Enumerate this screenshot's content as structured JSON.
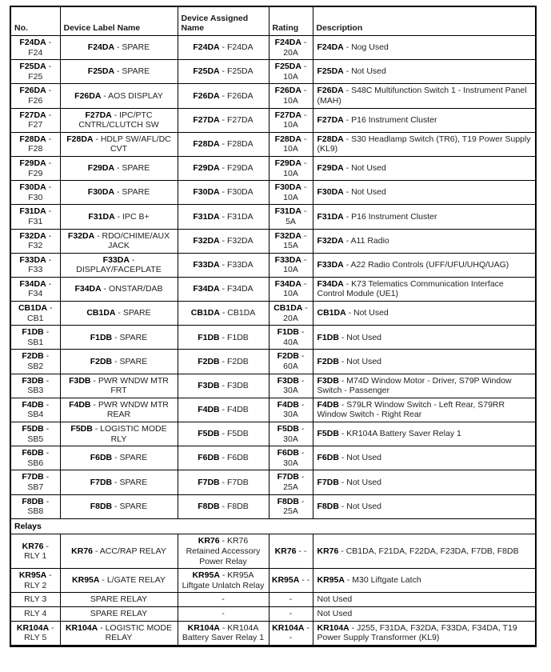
{
  "table": {
    "headers": [
      {
        "label": "No."
      },
      {
        "label": "Device Label Name"
      },
      {
        "label": "Device Assigned Name"
      },
      {
        "label": "Rating"
      },
      {
        "label": "Description"
      }
    ],
    "relays_section_label": "Relays",
    "fuse_rows": [
      {
        "no": {
          "code": "F24DA",
          "text": " - F24"
        },
        "label": {
          "code": "F24DA",
          "text": " - SPARE"
        },
        "assigned": {
          "code": "F24DA",
          "text": " - F24DA"
        },
        "rating": {
          "code": "F24DA",
          "text": " - 20A"
        },
        "description": {
          "code": "F24DA",
          "text": " - Nog Used"
        }
      },
      {
        "no": {
          "code": "F25DA",
          "text": " - F25"
        },
        "label": {
          "code": "F25DA",
          "text": " - SPARE"
        },
        "assigned": {
          "code": "F25DA",
          "text": " - F25DA"
        },
        "rating": {
          "code": "F25DA",
          "text": " - 10A"
        },
        "description": {
          "code": "F25DA",
          "text": " - Not Used"
        }
      },
      {
        "no": {
          "code": "F26DA",
          "text": " - F26"
        },
        "label": {
          "code": "F26DA",
          "text": " - AOS DISPLAY"
        },
        "assigned": {
          "code": "F26DA",
          "text": " - F26DA"
        },
        "rating": {
          "code": "F26DA",
          "text": " - 10A"
        },
        "description": {
          "code": "F26DA",
          "text": " - S48C Multifunction Switch 1 - Instrument Panel (MAH)"
        }
      },
      {
        "no": {
          "code": "F27DA",
          "text": " - F27"
        },
        "label": {
          "code": "F27DA",
          "text": " - IPC/PTC CNTRL/CLUTCH SW"
        },
        "assigned": {
          "code": "F27DA",
          "text": " - F27DA"
        },
        "rating": {
          "code": "F27DA",
          "text": " - 10A"
        },
        "description": {
          "code": "F27DA",
          "text": " - P16 Instrument Cluster"
        }
      },
      {
        "no": {
          "code": "F28DA",
          "text": " - F28"
        },
        "label": {
          "code": "F28DA",
          "text": " - HDLP SW/AFL/DC CVT"
        },
        "assigned": {
          "code": "F28DA",
          "text": " - F28DA"
        },
        "rating": {
          "code": "F28DA",
          "text": " - 10A"
        },
        "description": {
          "code": "F28DA",
          "text": " - S30 Headlamp Switch (TR6), T19 Power Supply (KL9)"
        }
      },
      {
        "no": {
          "code": "F29DA",
          "text": " - F29"
        },
        "label": {
          "code": "F29DA",
          "text": " - SPARE"
        },
        "assigned": {
          "code": "F29DA",
          "text": " - F29DA"
        },
        "rating": {
          "code": "F29DA",
          "text": " - 10A"
        },
        "description": {
          "code": "F29DA",
          "text": " - Not Used"
        }
      },
      {
        "no": {
          "code": "F30DA",
          "text": " - F30"
        },
        "label": {
          "code": "F30DA",
          "text": " - SPARE"
        },
        "assigned": {
          "code": "F30DA",
          "text": " - F30DA"
        },
        "rating": {
          "code": "F30DA",
          "text": " - 10A"
        },
        "description": {
          "code": "F30DA",
          "text": " - Not Used"
        }
      },
      {
        "no": {
          "code": "F31DA",
          "text": " - F31"
        },
        "label": {
          "code": "F31DA",
          "text": " - IPC B+"
        },
        "assigned": {
          "code": "F31DA",
          "text": " - F31DA"
        },
        "rating": {
          "code": "F31DA",
          "text": " - 5A"
        },
        "description": {
          "code": "F31DA",
          "text": " - P16 Instrument Cluster"
        }
      },
      {
        "no": {
          "code": "F32DA",
          "text": " - F32"
        },
        "label": {
          "code": "F32DA",
          "text": " - RDO/CHIME/AUX JACK"
        },
        "assigned": {
          "code": "F32DA",
          "text": " - F32DA"
        },
        "rating": {
          "code": "F32DA",
          "text": " - 15A"
        },
        "description": {
          "code": "F32DA",
          "text": " - A11 Radio"
        }
      },
      {
        "no": {
          "code": "F33DA",
          "text": " - F33"
        },
        "label": {
          "code": "F33DA",
          "text": " - DISPLAY/FACEPLATE"
        },
        "assigned": {
          "code": "F33DA",
          "text": " - F33DA"
        },
        "rating": {
          "code": "F33DA",
          "text": " - 10A"
        },
        "description": {
          "code": "F33DA",
          "text": " - A22 Radio Controls (UFF/UFU/UHQ/UAG)"
        }
      },
      {
        "no": {
          "code": "F34DA",
          "text": " - F34"
        },
        "label": {
          "code": "F34DA",
          "text": " - ONSTAR/DAB"
        },
        "assigned": {
          "code": "F34DA",
          "text": " - F34DA"
        },
        "rating": {
          "code": "F34DA",
          "text": " - 10A"
        },
        "description": {
          "code": "F34DA",
          "text": " - K73 Telematics Communication Interface Control Module (UE1)"
        }
      },
      {
        "no": {
          "code": "CB1DA",
          "text": " - CB1"
        },
        "label": {
          "code": "CB1DA",
          "text": " - SPARE"
        },
        "assigned": {
          "code": "CB1DA",
          "text": " - CB1DA"
        },
        "rating": {
          "code": "CB1DA",
          "text": " - 20A"
        },
        "description": {
          "code": "CB1DA",
          "text": " - Not Used"
        }
      },
      {
        "no": {
          "code": "F1DB",
          "text": " - SB1"
        },
        "label": {
          "code": "F1DB",
          "text": " - SPARE"
        },
        "assigned": {
          "code": "F1DB",
          "text": " - F1DB"
        },
        "rating": {
          "code": "F1DB",
          "text": " - 40A"
        },
        "description": {
          "code": "F1DB",
          "text": " - Not Used"
        }
      },
      {
        "no": {
          "code": "F2DB",
          "text": " - SB2"
        },
        "label": {
          "code": "F2DB",
          "text": " - SPARE"
        },
        "assigned": {
          "code": "F2DB",
          "text": " - F2DB"
        },
        "rating": {
          "code": "F2DB",
          "text": " - 60A"
        },
        "description": {
          "code": "F2DB",
          "text": " - Not Used"
        }
      },
      {
        "no": {
          "code": "F3DB",
          "text": " - SB3"
        },
        "label": {
          "code": "F3DB",
          "text": " - PWR WNDW MTR FRT"
        },
        "assigned": {
          "code": "F3DB",
          "text": " - F3DB"
        },
        "rating": {
          "code": "F3DB",
          "text": " - 30A"
        },
        "description": {
          "code": "F3DB",
          "text": " - M74D Window Motor - Driver, S79P Window Switch - Passenger"
        }
      },
      {
        "no": {
          "code": "F4DB",
          "text": " - SB4"
        },
        "label": {
          "code": "F4DB",
          "text": " - PWR WNDW MTR REAR"
        },
        "assigned": {
          "code": "F4DB",
          "text": " - F4DB"
        },
        "rating": {
          "code": "F4DB",
          "text": " - 30A"
        },
        "description": {
          "code": "F4DB",
          "text": " - S79LR Window Switch - Left Rear, S79RR Window Switch - Right Rear"
        }
      },
      {
        "no": {
          "code": "F5DB",
          "text": " - SB5"
        },
        "label": {
          "code": "F5DB",
          "text": " - LOGISTIC MODE RLY"
        },
        "assigned": {
          "code": "F5DB",
          "text": " - F5DB"
        },
        "rating": {
          "code": "F5DB",
          "text": " - 30A"
        },
        "description": {
          "code": "F5DB",
          "text": " - KR104A Battery Saver Relay 1"
        }
      },
      {
        "no": {
          "code": "F6DB",
          "text": " - SB6"
        },
        "label": {
          "code": "F6DB",
          "text": " - SPARE"
        },
        "assigned": {
          "code": "F6DB",
          "text": " - F6DB"
        },
        "rating": {
          "code": "F6DB",
          "text": " - 30A"
        },
        "description": {
          "code": "F6DB",
          "text": " - Not Used"
        }
      },
      {
        "no": {
          "code": "F7DB",
          "text": " - SB7"
        },
        "label": {
          "code": "F7DB",
          "text": " - SPARE"
        },
        "assigned": {
          "code": "F7DB",
          "text": " - F7DB"
        },
        "rating": {
          "code": "F7DB",
          "text": " - 25A"
        },
        "description": {
          "code": "F7DB",
          "text": " - Not Used"
        }
      },
      {
        "no": {
          "code": "F8DB",
          "text": " - SB8"
        },
        "label": {
          "code": "F8DB",
          "text": " - SPARE"
        },
        "assigned": {
          "code": "F8DB",
          "text": " - F8DB"
        },
        "rating": {
          "code": "F8DB",
          "text": " - 25A"
        },
        "description": {
          "code": "F8DB",
          "text": " - Not Used"
        }
      }
    ],
    "relay_rows": [
      {
        "no": {
          "code": "KR76",
          "text": " - RLY 1"
        },
        "label": {
          "code": "KR76",
          "text": " - ACC/RAP RELAY"
        },
        "assigned": {
          "code": "KR76",
          "text": " - KR76 Retained Accessory Power Relay"
        },
        "rating": {
          "code": "KR76",
          "text": " - -"
        },
        "description": {
          "code": "KR76",
          "text": " - CB1DA, F21DA, F22DA, F23DA, F7DB, F8DB"
        }
      },
      {
        "no": {
          "code": "KR95A",
          "text": " - RLY 2"
        },
        "label": {
          "code": "KR95A",
          "text": " - L/GATE RELAY"
        },
        "assigned": {
          "code": "KR95A",
          "text": " - KR95A Liftgate Unlatch Relay"
        },
        "rating": {
          "code": "KR95A",
          "text": " - -"
        },
        "description": {
          "code": "KR95A",
          "text": " - M30 Liftgate Latch"
        }
      },
      {
        "no": {
          "code": "",
          "text": "RLY 3"
        },
        "label": {
          "code": "",
          "text": "SPARE RELAY"
        },
        "assigned": {
          "code": "",
          "text": "-"
        },
        "rating": {
          "code": "",
          "text": "-"
        },
        "description": {
          "code": "",
          "text": "Not Used"
        }
      },
      {
        "no": {
          "code": "",
          "text": "RLY 4"
        },
        "label": {
          "code": "",
          "text": "SPARE RELAY"
        },
        "assigned": {
          "code": "",
          "text": "-"
        },
        "rating": {
          "code": "",
          "text": "-"
        },
        "description": {
          "code": "",
          "text": "Not Used"
        }
      },
      {
        "no": {
          "code": "KR104A",
          "text": " - RLY 5"
        },
        "label": {
          "code": "KR104A",
          "text": " - LOGISTIC MODE RELAY"
        },
        "assigned": {
          "code": "KR104A",
          "text": " - KR104A Battery Saver Relay 1"
        },
        "rating": {
          "code": "KR104A",
          "text": " - -"
        },
        "description": {
          "code": "KR104A",
          "text": " - J255, F31DA, F32DA, F33DA, F34DA, T19 Power Supply Transformer (KL9)"
        }
      }
    ]
  }
}
